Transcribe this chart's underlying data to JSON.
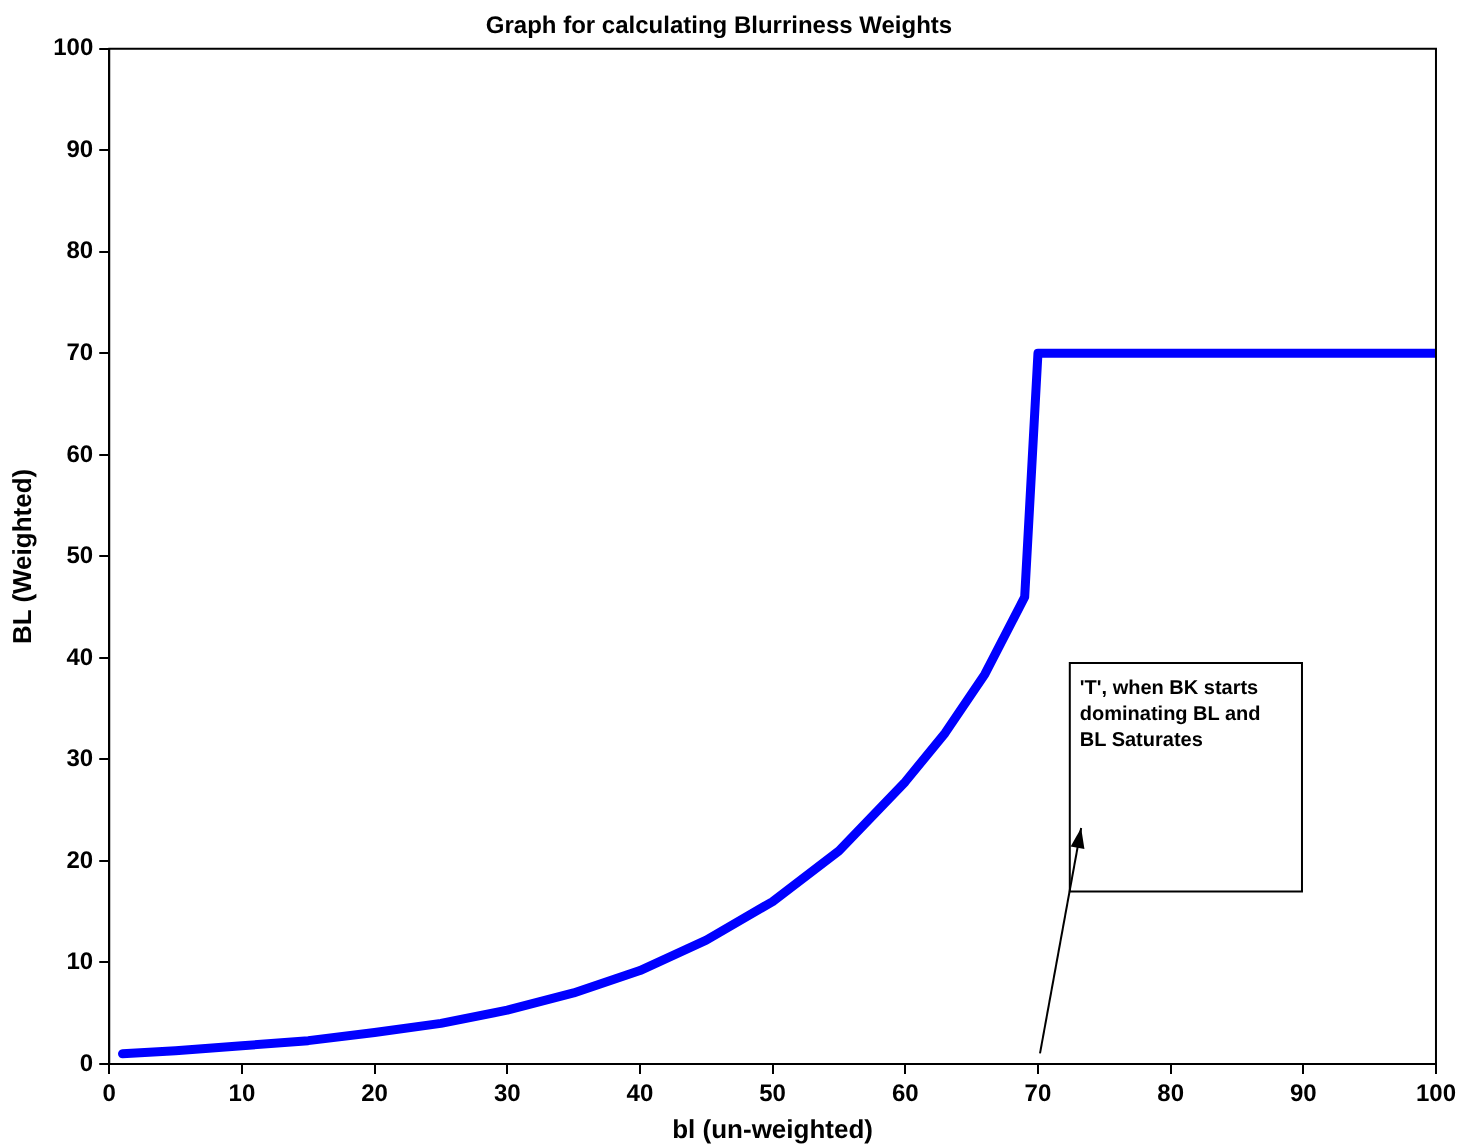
{
  "chart_data": {
    "type": "line",
    "title": "Graph for calculating Blurriness Weights",
    "xlabel": "bl (un-weighted)",
    "ylabel": "BL (Weighted)",
    "xlim": [
      0,
      100
    ],
    "ylim": [
      0,
      100
    ],
    "xticks": [
      0,
      10,
      20,
      30,
      40,
      50,
      60,
      70,
      80,
      90,
      100
    ],
    "yticks": [
      0,
      10,
      20,
      30,
      40,
      50,
      60,
      70,
      80,
      90,
      100
    ],
    "grid": false,
    "legend": false,
    "series": [
      {
        "color": "#0000ff",
        "x": [
          1,
          5,
          10,
          15,
          20,
          25,
          30,
          35,
          40,
          45,
          50,
          55,
          60,
          63,
          66,
          69,
          70,
          80,
          90,
          100
        ],
        "values": [
          1,
          1.3,
          1.8,
          2.3,
          3.1,
          4,
          5.3,
          7,
          9.2,
          12.2,
          16,
          21,
          27.8,
          32.6,
          38.4,
          46,
          70,
          70,
          70,
          70
        ]
      }
    ],
    "annotations": [
      "'T', when BK starts dominating BL and BL Saturates"
    ]
  }
}
